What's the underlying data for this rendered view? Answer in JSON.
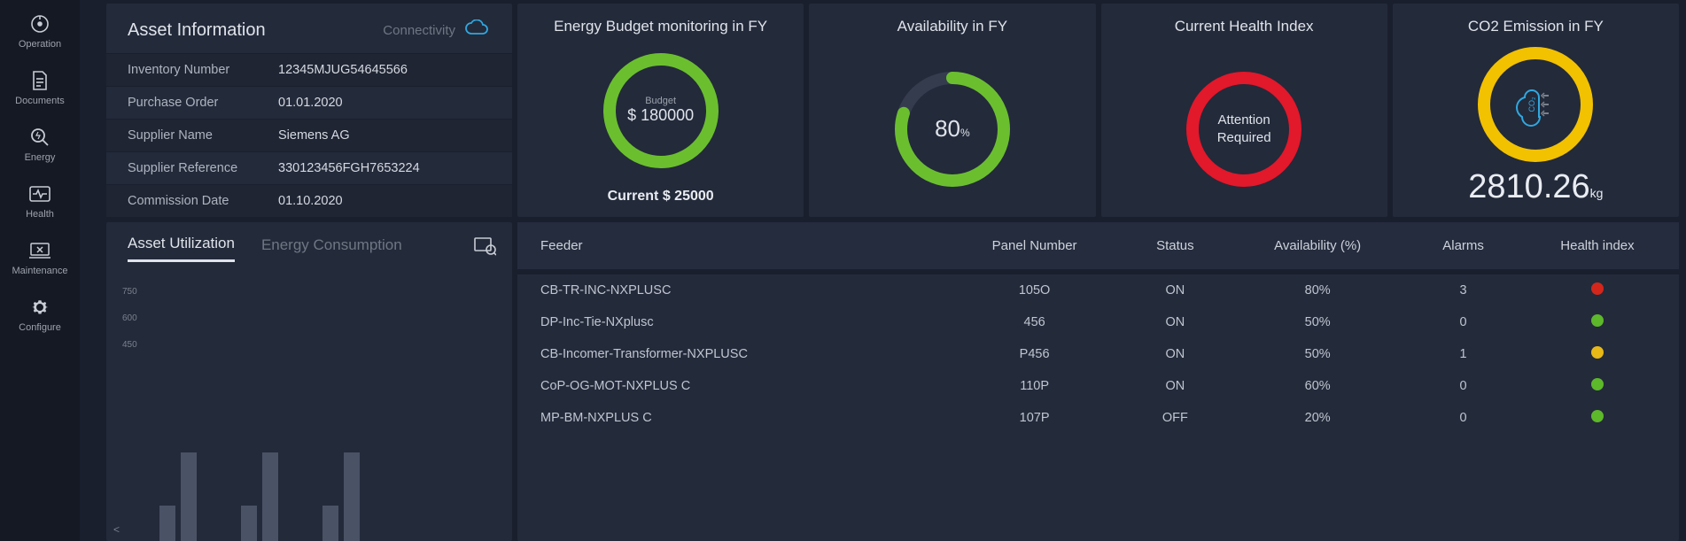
{
  "sidebar": {
    "items": [
      {
        "label": "Operation",
        "icon": "target"
      },
      {
        "label": "Documents",
        "icon": "document"
      },
      {
        "label": "Energy",
        "icon": "magnify"
      },
      {
        "label": "Health",
        "icon": "heartbeat"
      },
      {
        "label": "Maintenance",
        "icon": "laptop-wrench"
      },
      {
        "label": "Configure",
        "icon": "gear"
      }
    ]
  },
  "asset_info": {
    "title": "Asset Information",
    "connectivity_label": "Connectivity",
    "rows": [
      {
        "label": "Inventory Number",
        "value": "12345MJUG54645566"
      },
      {
        "label": "Purchase Order",
        "value": "01.01.2020"
      },
      {
        "label": "Supplier Name",
        "value": "Siemens AG"
      },
      {
        "label": "Supplier Reference",
        "value": "330123456FGH7653224"
      },
      {
        "label": "Commission Date",
        "value": "01.10.2020"
      }
    ]
  },
  "kpi": {
    "energy": {
      "title": "Energy Budget monitoring in FY",
      "ring_color": "#6bbf2f",
      "ring_percent": 100,
      "center_label": "Budget",
      "center_value": "$ 180000",
      "current_label": "Current  $ 25000"
    },
    "availability": {
      "title": "Availability in FY",
      "ring_color": "#6bbf2f",
      "ring_percent": 80,
      "center_value": "80",
      "center_unit": "%"
    },
    "health": {
      "title": "Current Health Index",
      "ring_color": "#e2182b",
      "ring_percent": 100,
      "center_line1": "Attention",
      "center_line2": "Required"
    },
    "co2": {
      "title": "CO2 Emission in FY",
      "ring_color": "#f2c100",
      "ring_percent": 100,
      "value": "2810.26",
      "unit": "kg"
    }
  },
  "utilization": {
    "tabs": [
      {
        "label": "Asset Utilization",
        "active": true
      },
      {
        "label": "Energy Consumption",
        "active": false
      }
    ],
    "y_ticks": [
      "750",
      "600",
      "450"
    ],
    "bars": [
      {
        "a": 40,
        "b": 100
      },
      {
        "a": 40,
        "b": 100
      },
      {
        "a": 40,
        "b": 100
      }
    ],
    "bar_color": "#4a5266"
  },
  "feeders": {
    "columns": [
      "Feeder",
      "Panel Number",
      "Status",
      "Availability (%)",
      "Alarms",
      "Health index"
    ],
    "rows": [
      {
        "feeder": "CB-TR-INC-NXPLUSC",
        "panel": "105O",
        "status": "ON",
        "avail": "80%",
        "alarms": "3",
        "health": "#d4261b"
      },
      {
        "feeder": "DP-Inc-Tie-NXplusc",
        "panel": "456",
        "status": "ON",
        "avail": "50%",
        "alarms": "0",
        "health": "#5db82a"
      },
      {
        "feeder": "CB-Incomer-Transformer-NXPLUSC",
        "panel": "P456",
        "status": "ON",
        "avail": "50%",
        "alarms": "1",
        "health": "#e7b816"
      },
      {
        "feeder": "CoP-OG-MOT-NXPLUS C",
        "panel": "110P",
        "status": "ON",
        "avail": "60%",
        "alarms": "0",
        "health": "#5db82a"
      },
      {
        "feeder": "MP-BM-NXPLUS C",
        "panel": "107P",
        "status": "OFF",
        "avail": "20%",
        "alarms": "0",
        "health": "#5db82a"
      }
    ]
  },
  "colors": {
    "panel_bg": "#232a3a",
    "page_bg": "#1a1f2e",
    "ring_track": "#1c2230",
    "cloud": "#2fa8e0"
  }
}
